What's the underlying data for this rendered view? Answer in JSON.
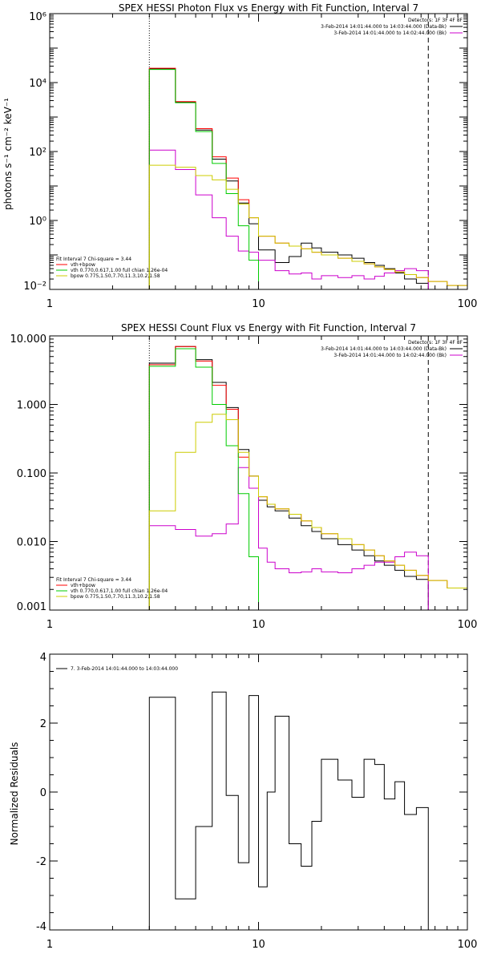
{
  "chart_data": [
    {
      "type": "line",
      "title": "SPEX HESSI Photon Flux vs Energy with Fit Function, Interval 7",
      "ylabel": "photons s⁻¹ cm⁻² keV⁻¹",
      "xlabel": "",
      "xscale": "log",
      "yscale": "log",
      "xlim": [
        1,
        100
      ],
      "ylim": [
        0.01,
        1000000
      ],
      "xticks": [
        1,
        10,
        100
      ],
      "xtick_labels": [
        "1",
        "10",
        "100"
      ],
      "yticks": [
        0.01,
        1,
        100,
        10000,
        1000000
      ],
      "ytick_labels": [
        "10⁻²",
        "10⁰",
        "10²",
        "10⁴",
        "10⁶"
      ],
      "legend_tr": {
        "header": "Detectors: 1F 3F 4F 8F",
        "lines": [
          {
            "text": "3-Feb-2014 14:01:44.000 to 14:03:44.000 (Data-Bk)",
            "color": "#000000"
          },
          {
            "text": "3-Feb-2014 14:01:44.000 to 14:02:44.000 (Bk)",
            "color": "#cc00cc"
          }
        ]
      },
      "legend_bl": {
        "header": "Fit Interval  7    Chi-square = 3.44",
        "lines": [
          {
            "text": "vth+bpow",
            "color": "#ff0000"
          },
          {
            "text": "vth 0.770,0.617,1.00  full chian 1.26e-04",
            "color": "#00cc00"
          },
          {
            "text": "bpow 0.775,1.50,7.70,11.3,10.2,1.58",
            "color": "#cccc00"
          }
        ]
      },
      "vlines": [
        {
          "x": 3,
          "style": "dotted"
        },
        {
          "x": 65,
          "style": "dashed"
        }
      ],
      "edges": [
        3,
        4,
        5,
        6,
        7,
        8,
        9,
        10,
        12,
        14,
        16,
        18,
        20,
        24,
        28,
        32,
        36,
        40,
        45,
        50,
        57,
        65,
        80,
        100
      ],
      "series": [
        {
          "name": "Data-Bk",
          "color": "#000000",
          "values": [
            25000,
            2700,
            420,
            60,
            14,
            3.2,
            0.8,
            0.14,
            0.06,
            0.09,
            0.22,
            0.16,
            0.12,
            0.1,
            0.08,
            0.06,
            0.05,
            0.04,
            0.03,
            0.02,
            0.015,
            null,
            null
          ]
        },
        {
          "name": "Bk",
          "color": "#cc00cc",
          "values": [
            110,
            30,
            5.5,
            1.2,
            0.35,
            0.13,
            0.12,
            0.07,
            0.035,
            0.028,
            0.03,
            0.02,
            0.025,
            0.022,
            0.025,
            0.02,
            0.024,
            0.03,
            0.035,
            0.04,
            0.035,
            null,
            null
          ]
        },
        {
          "name": "vth+bpow",
          "color": "#ff0000",
          "values": [
            26000,
            2800,
            460,
            70,
            17,
            4.0,
            1.2,
            0.35,
            0.22,
            0.18,
            0.15,
            0.12,
            0.1,
            0.08,
            0.065,
            0.055,
            0.045,
            0.038,
            0.032,
            0.027,
            0.022,
            0.017,
            0.013
          ]
        },
        {
          "name": "vth",
          "color": "#00cc00",
          "values": [
            24000,
            2600,
            380,
            45,
            6,
            0.7,
            0.07,
            0.008,
            null,
            null,
            null,
            null,
            null,
            null,
            null,
            null,
            null,
            null,
            null,
            null,
            null,
            null,
            null
          ]
        },
        {
          "name": "bpow",
          "color": "#cccc00",
          "values": [
            40,
            35,
            20,
            15,
            8,
            3.0,
            1.2,
            0.35,
            0.22,
            0.18,
            0.15,
            0.12,
            0.1,
            0.08,
            0.065,
            0.055,
            0.045,
            0.038,
            0.032,
            0.027,
            0.022,
            0.017,
            0.013
          ]
        }
      ]
    },
    {
      "type": "line",
      "title": "SPEX HESSI Count Flux vs Energy with Fit Function, Interval 7",
      "ylabel": "",
      "xlabel": "",
      "xscale": "log",
      "yscale": "log",
      "xlim": [
        1,
        100
      ],
      "ylim": [
        0.001,
        10
      ],
      "xticks": [
        1,
        10,
        100
      ],
      "xtick_labels": [
        "1",
        "10",
        "100"
      ],
      "yticks": [
        0.001,
        0.01,
        0.1,
        1,
        10
      ],
      "ytick_labels": [
        "0.001",
        "0.010",
        "0.100",
        "1.000",
        "10.000"
      ],
      "legend_tr": {
        "header": "Detectors: 1F 3F 4F 8F",
        "lines": [
          {
            "text": "3-Feb-2014 14:01:44.000 to 14:03:44.000 (Data-Bk)",
            "color": "#000000"
          },
          {
            "text": "3-Feb-2014 14:01:44.000 to 14:02:44.000 (Bk)",
            "color": "#cc00cc"
          }
        ]
      },
      "legend_bl": {
        "header": "Fit Interval  7    Chi-square = 3.44",
        "lines": [
          {
            "text": "vth+bpow",
            "color": "#ff0000"
          },
          {
            "text": "vth 0.770,0.617,1.00  full chian 1.26e-04",
            "color": "#00cc00"
          },
          {
            "text": "bpow 0.775,1.50,7.70,11.3,10.2,1.58",
            "color": "#cccc00"
          }
        ]
      },
      "vlines": [
        {
          "x": 3,
          "style": "dotted"
        },
        {
          "x": 65,
          "style": "dashed"
        }
      ],
      "edges": [
        3,
        4,
        5,
        6,
        7,
        8,
        9,
        10,
        11,
        12,
        14,
        16,
        18,
        20,
        24,
        28,
        32,
        36,
        40,
        45,
        50,
        57,
        65,
        80,
        100
      ],
      "series": [
        {
          "name": "Data-Bk",
          "color": "#000000",
          "values": [
            4.0,
            7.0,
            4.5,
            2.1,
            0.9,
            0.22,
            0.09,
            0.04,
            0.032,
            0.028,
            0.022,
            0.017,
            0.014,
            0.011,
            0.009,
            0.0075,
            0.0062,
            0.0052,
            0.0045,
            0.0038,
            0.0031,
            0.0028,
            null,
            null
          ]
        },
        {
          "name": "Bk",
          "color": "#cc00cc",
          "values": [
            0.017,
            0.015,
            0.012,
            0.013,
            0.018,
            0.12,
            0.06,
            0.008,
            0.005,
            0.004,
            0.0035,
            0.0036,
            0.004,
            0.0036,
            0.0035,
            0.004,
            0.0045,
            0.005,
            0.005,
            0.006,
            0.007,
            0.0062,
            null,
            null
          ]
        },
        {
          "name": "vth+bpow",
          "color": "#ff0000",
          "values": [
            3.8,
            7.0,
            4.3,
            1.9,
            0.85,
            0.17,
            0.09,
            0.045,
            0.035,
            0.03,
            0.025,
            0.02,
            0.016,
            0.013,
            0.011,
            0.009,
            0.0075,
            0.0062,
            0.0052,
            0.0045,
            0.0038,
            0.0032,
            0.0027,
            0.0021
          ]
        },
        {
          "name": "vth",
          "color": "#00cc00",
          "values": [
            3.6,
            6.5,
            3.5,
            1.0,
            0.25,
            0.05,
            0.006,
            0.001,
            null,
            null,
            null,
            null,
            null,
            null,
            null,
            null,
            null,
            null,
            null,
            null,
            null,
            null,
            null,
            null
          ]
        },
        {
          "name": "bpow",
          "color": "#cccc00",
          "values": [
            0.028,
            0.2,
            0.55,
            0.72,
            0.6,
            0.2,
            0.09,
            0.045,
            0.035,
            0.03,
            0.025,
            0.02,
            0.016,
            0.013,
            0.011,
            0.009,
            0.0075,
            0.0062,
            0.0052,
            0.0045,
            0.0038,
            0.0032,
            0.0027,
            0.0021
          ]
        }
      ]
    },
    {
      "type": "line",
      "title": "",
      "ylabel": "Normalized Residuals",
      "xlabel": "",
      "xscale": "log",
      "yscale": "linear",
      "xlim": [
        1,
        100
      ],
      "ylim": [
        -4,
        4
      ],
      "xticks": [
        1,
        10,
        100
      ],
      "xtick_labels": [
        "1",
        "10",
        "100"
      ],
      "yticks": [
        -4,
        -2,
        0,
        2,
        4
      ],
      "ytick_labels": [
        "-4",
        "-2",
        "0",
        "2",
        "4"
      ],
      "legend_tr": null,
      "legend_bl": null,
      "legend_tl": {
        "text": "7.  3-Feb-2014 14:01:44.000 to 14:03:44.000",
        "color": "#000000"
      },
      "vlines": [],
      "edges": [
        3,
        4,
        5,
        6,
        7,
        8,
        9,
        10,
        11,
        12,
        14,
        16,
        18,
        20,
        24,
        28,
        32,
        36,
        40,
        45,
        50,
        57,
        65
      ],
      "series": [
        {
          "name": "residuals",
          "color": "#000000",
          "values": [
            2.75,
            -3.1,
            -1.0,
            2.9,
            -0.1,
            -2.05,
            2.8,
            -2.75,
            0.0,
            2.2,
            -1.5,
            -2.15,
            -0.85,
            0.95,
            0.35,
            -0.15,
            0.95,
            0.8,
            -0.2,
            0.3,
            -0.65,
            -0.45
          ]
        }
      ]
    }
  ]
}
